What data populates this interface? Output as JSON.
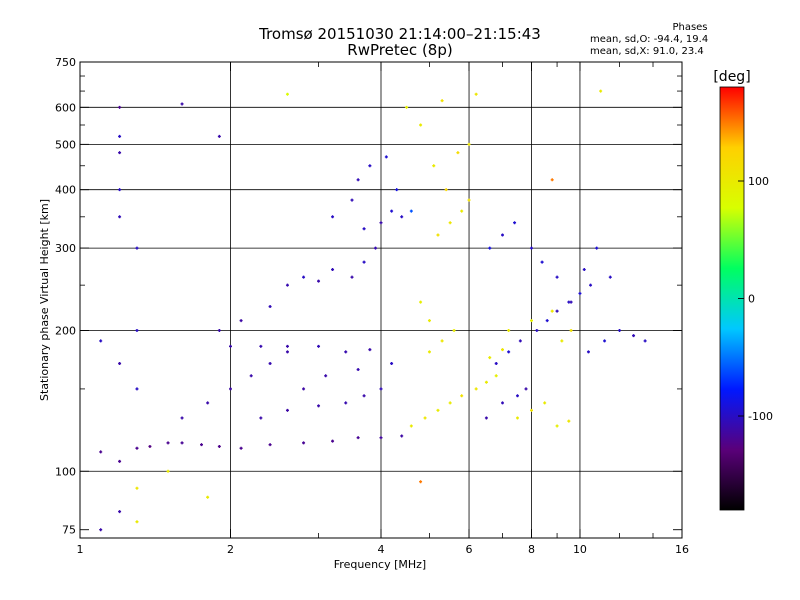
{
  "header": {
    "title": "Tromsø 20151030 21:14:00–21:15:43",
    "subtitle": "RwPretec (8p)"
  },
  "info": {
    "label": "Phases",
    "line_o": "mean, sd,O: -94.4, 19.4",
    "line_x": "mean, sd,X:  91.0, 23.4"
  },
  "colorbar": {
    "title": "[deg]",
    "ticks": [
      {
        "value": 100,
        "label": "100"
      },
      {
        "value": 0,
        "label": "0"
      },
      {
        "value": -100,
        "label": "-100"
      }
    ],
    "range": [
      -180,
      180
    ],
    "colormap": [
      "#000000",
      "#5a007a",
      "#0018ff",
      "#00c8ff",
      "#00ff60",
      "#d8ff00",
      "#ffd000",
      "#ff0000"
    ]
  },
  "chart_data": {
    "type": "scatter",
    "xlabel": "Frequency [MHz]",
    "ylabel": "Stationary phase Virtual Height [km]",
    "xscale": "log",
    "yscale": "log",
    "xlim": [
      1,
      16
    ],
    "ylim": [
      72,
      750
    ],
    "xticks": [
      1,
      2,
      4,
      6,
      8,
      10,
      16
    ],
    "yticks": [
      75,
      100,
      200,
      300,
      400,
      500,
      600,
      750
    ],
    "grid_x": [
      2,
      4,
      6,
      8,
      10
    ],
    "grid_y": [
      100,
      200,
      300,
      400,
      500,
      600
    ],
    "grid": true,
    "color_dimension": "phase [deg]",
    "points": [
      [
        1.1,
        110,
        -120
      ],
      [
        1.2,
        105,
        -120
      ],
      [
        1.3,
        112,
        -120
      ],
      [
        1.38,
        113,
        -125
      ],
      [
        1.5,
        115,
        -120
      ],
      [
        1.6,
        115,
        -118
      ],
      [
        1.75,
        114,
        -120
      ],
      [
        1.9,
        113,
        -122
      ],
      [
        2.1,
        112,
        -120
      ],
      [
        2.4,
        114,
        -120
      ],
      [
        2.8,
        115,
        -118
      ],
      [
        3.2,
        116,
        -120
      ],
      [
        3.6,
        118,
        -118
      ],
      [
        4.0,
        118,
        -115
      ],
      [
        4.4,
        119,
        -112
      ],
      [
        1.6,
        130,
        -110
      ],
      [
        1.8,
        140,
        -110
      ],
      [
        2.0,
        150,
        -112
      ],
      [
        2.2,
        160,
        -110
      ],
      [
        2.4,
        170,
        -108
      ],
      [
        2.6,
        180,
        -110
      ],
      [
        2.0,
        185,
        -110
      ],
      [
        2.3,
        185,
        -108
      ],
      [
        2.6,
        185,
        -110
      ],
      [
        3.0,
        185,
        -105
      ],
      [
        3.4,
        180,
        -108
      ],
      [
        3.8,
        182,
        -110
      ],
      [
        1.9,
        200,
        -110
      ],
      [
        2.1,
        210,
        -112
      ],
      [
        2.4,
        225,
        -105
      ],
      [
        2.6,
        250,
        -108
      ],
      [
        2.8,
        260,
        -100
      ],
      [
        3.0,
        255,
        -110
      ],
      [
        3.2,
        270,
        -105
      ],
      [
        3.5,
        260,
        -110
      ],
      [
        3.7,
        280,
        -100
      ],
      [
        3.9,
        300,
        -108
      ],
      [
        3.2,
        350,
        -100
      ],
      [
        3.5,
        380,
        -105
      ],
      [
        3.7,
        330,
        -100
      ],
      [
        4.0,
        340,
        -110
      ],
      [
        4.2,
        360,
        -95
      ],
      [
        4.4,
        350,
        -100
      ],
      [
        3.6,
        420,
        -105
      ],
      [
        3.8,
        450,
        -100
      ],
      [
        4.1,
        470,
        -95
      ],
      [
        4.3,
        400,
        -90
      ],
      [
        4.6,
        360,
        -60
      ],
      [
        2.3,
        130,
        -110
      ],
      [
        2.6,
        135,
        -112
      ],
      [
        3.0,
        138,
        -110
      ],
      [
        3.4,
        140,
        -108
      ],
      [
        3.7,
        145,
        -110
      ],
      [
        4.0,
        150,
        -105
      ],
      [
        2.8,
        150,
        -112
      ],
      [
        3.1,
        160,
        -110
      ],
      [
        3.6,
        165,
        -108
      ],
      [
        4.2,
        170,
        -100
      ],
      [
        4.6,
        125,
        100
      ],
      [
        4.9,
        130,
        105
      ],
      [
        5.2,
        135,
        98
      ],
      [
        5.5,
        140,
        100
      ],
      [
        5.8,
        145,
        110
      ],
      [
        6.2,
        150,
        105
      ],
      [
        6.5,
        155,
        100
      ],
      [
        6.8,
        160,
        95
      ],
      [
        5.0,
        180,
        100
      ],
      [
        5.3,
        190,
        105
      ],
      [
        5.6,
        200,
        98
      ],
      [
        5.0,
        210,
        100
      ],
      [
        4.8,
        230,
        95
      ],
      [
        5.2,
        320,
        110
      ],
      [
        5.5,
        340,
        105
      ],
      [
        5.8,
        360,
        100
      ],
      [
        6.0,
        380,
        110
      ],
      [
        5.4,
        400,
        120
      ],
      [
        5.1,
        450,
        100
      ],
      [
        5.7,
        480,
        115
      ],
      [
        6.0,
        500,
        105
      ],
      [
        4.8,
        550,
        100
      ],
      [
        4.5,
        600,
        95
      ],
      [
        5.3,
        620,
        110
      ],
      [
        6.2,
        640,
        105
      ],
      [
        6.5,
        130,
        -110
      ],
      [
        7.0,
        140,
        -105
      ],
      [
        7.5,
        145,
        -100
      ],
      [
        7.8,
        150,
        -110
      ],
      [
        6.8,
        170,
        -100
      ],
      [
        7.2,
        180,
        -95
      ],
      [
        7.6,
        190,
        -105
      ],
      [
        8.2,
        200,
        -100
      ],
      [
        8.6,
        210,
        -95
      ],
      [
        9.0,
        220,
        -105
      ],
      [
        9.5,
        230,
        -100
      ],
      [
        10.0,
        240,
        -95
      ],
      [
        10.5,
        250,
        -100
      ],
      [
        6.6,
        300,
        -90
      ],
      [
        7.0,
        320,
        -100
      ],
      [
        7.4,
        340,
        -95
      ],
      [
        8.0,
        300,
        -100
      ],
      [
        8.4,
        280,
        -95
      ],
      [
        9.0,
        260,
        -100
      ],
      [
        9.6,
        230,
        -105
      ],
      [
        10.2,
        270,
        -100
      ],
      [
        10.8,
        300,
        -95
      ],
      [
        11.5,
        260,
        -100
      ],
      [
        7.2,
        200,
        100
      ],
      [
        8.0,
        210,
        95
      ],
      [
        8.8,
        220,
        105
      ],
      [
        9.2,
        190,
        100
      ],
      [
        9.6,
        200,
        110
      ],
      [
        10.4,
        180,
        -100
      ],
      [
        11.2,
        190,
        -95
      ],
      [
        12.0,
        200,
        -100
      ],
      [
        12.8,
        195,
        -105
      ],
      [
        13.5,
        190,
        -100
      ],
      [
        7.5,
        130,
        100
      ],
      [
        8.0,
        135,
        110
      ],
      [
        8.5,
        140,
        100
      ],
      [
        9.0,
        125,
        95
      ],
      [
        9.5,
        128,
        105
      ],
      [
        6.6,
        175,
        100
      ],
      [
        7.0,
        182,
        105
      ],
      [
        1.2,
        480,
        -110
      ],
      [
        1.2,
        400,
        -100
      ],
      [
        1.2,
        350,
        -105
      ],
      [
        1.1,
        190,
        -100
      ],
      [
        1.2,
        170,
        -110
      ],
      [
        1.3,
        150,
        -100
      ],
      [
        1.3,
        300,
        -100
      ],
      [
        1.6,
        610,
        -110
      ],
      [
        1.9,
        520,
        -110
      ],
      [
        1.2,
        600,
        -120
      ],
      [
        1.2,
        520,
        -100
      ],
      [
        1.3,
        200,
        -100
      ],
      [
        1.5,
        100,
        100
      ],
      [
        1.3,
        92,
        105
      ],
      [
        1.2,
        82,
        -110
      ],
      [
        1.8,
        88,
        100
      ],
      [
        2.6,
        640,
        80
      ],
      [
        4.8,
        95,
        150
      ],
      [
        1.3,
        78,
        100
      ],
      [
        1.1,
        75,
        -110
      ],
      [
        11.0,
        650,
        100
      ],
      [
        8.8,
        420,
        150
      ]
    ]
  }
}
